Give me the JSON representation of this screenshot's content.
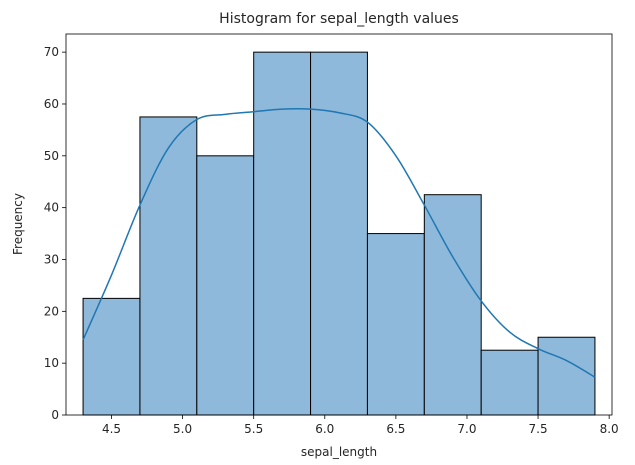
{
  "chart_data": {
    "type": "bar",
    "title": "Histogram for sepal_length values",
    "xlabel": "sepal_length",
    "ylabel": "Frequency",
    "bins": [
      {
        "x0": 4.3,
        "x1": 4.7,
        "value": 22.5
      },
      {
        "x0": 4.7,
        "x1": 5.1,
        "value": 57.5
      },
      {
        "x0": 5.1,
        "x1": 5.5,
        "value": 50
      },
      {
        "x0": 5.5,
        "x1": 5.9,
        "value": 70
      },
      {
        "x0": 5.9,
        "x1": 6.3,
        "value": 70
      },
      {
        "x0": 6.3,
        "x1": 6.7,
        "value": 35
      },
      {
        "x0": 6.7,
        "x1": 7.1,
        "value": 42.5
      },
      {
        "x0": 7.1,
        "x1": 7.5,
        "value": 12.5
      },
      {
        "x0": 7.5,
        "x1": 7.9,
        "value": 15
      }
    ],
    "kde": {
      "x": [
        4.3,
        4.5,
        4.7,
        4.9,
        5.1,
        5.3,
        5.5,
        5.7,
        5.9,
        6.1,
        6.3,
        6.5,
        6.7,
        6.9,
        7.1,
        7.3,
        7.5,
        7.7,
        7.9
      ],
      "y": [
        14.5,
        27,
        40.5,
        51.5,
        57,
        58,
        58.5,
        59,
        59,
        58.3,
        56.5,
        50,
        40.5,
        30.5,
        22,
        16,
        12.8,
        10.5,
        7.3
      ]
    },
    "xlim": [
      4.18,
      8.02
    ],
    "ylim": [
      0,
      73.5
    ],
    "xticks": [
      4.5,
      5.0,
      5.5,
      6.0,
      6.5,
      7.0,
      7.5,
      8.0
    ],
    "xtick_labels": [
      "4.5",
      "5.0",
      "5.5",
      "6.0",
      "6.5",
      "7.0",
      "7.5",
      "8.0"
    ],
    "yticks": [
      0,
      10,
      20,
      30,
      40,
      50,
      60,
      70
    ],
    "ytick_labels": [
      "0",
      "10",
      "20",
      "30",
      "40",
      "50",
      "60",
      "70"
    ],
    "grid": false,
    "colors": {
      "bar_fill": "#8fb9da",
      "bar_edge": "#000000",
      "kde_line": "#1f77b4",
      "axis": "#000000",
      "text": "#262626"
    }
  }
}
